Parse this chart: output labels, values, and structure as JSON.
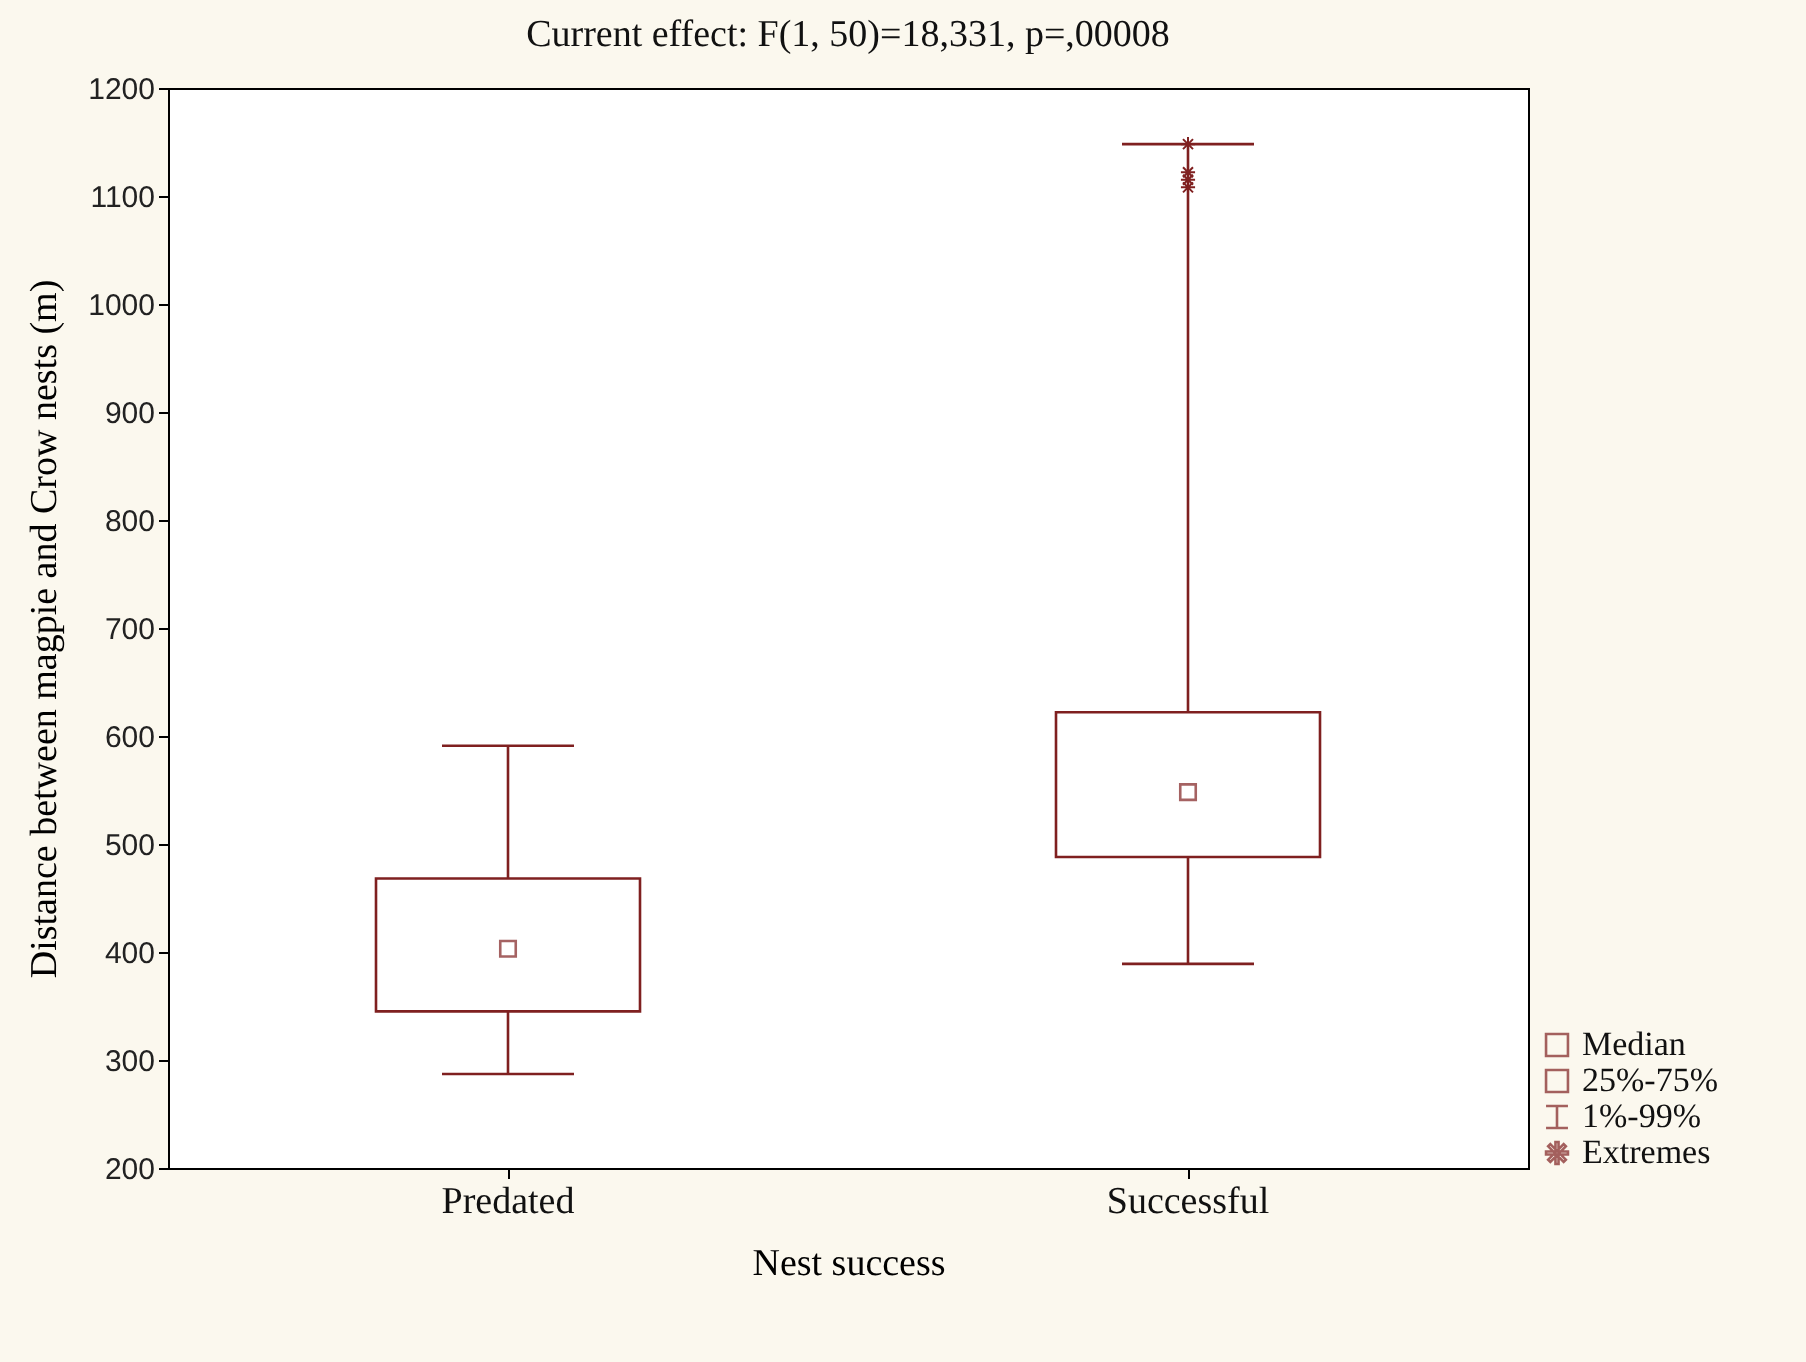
{
  "chart_data": {
    "type": "box",
    "title": "Current effect: F(1, 50)=18,331, p=,00008",
    "xlabel": "Nest success",
    "ylabel": "Distance between magpie and Crow nests (m)",
    "categories": [
      "Predated",
      "Successful"
    ],
    "series": [
      {
        "color": "#7f2020",
        "boxes": [
          {
            "low": 287,
            "q1": 345,
            "median": 403,
            "q3": 468,
            "high": 591
          },
          {
            "low": 389,
            "q1": 488,
            "median": 548,
            "q3": 622,
            "high": 1148,
            "outliers": [
              1148,
              1122,
              1115,
              1108
            ]
          }
        ]
      }
    ],
    "ylim": [
      200,
      1200
    ],
    "yticks": [
      200,
      300,
      400,
      500,
      600,
      700,
      800,
      900,
      1000,
      1100,
      1200
    ],
    "grid": false,
    "annotations": [
      "Median",
      "25%-75%",
      "1%-99%",
      "Extremes"
    ]
  }
}
